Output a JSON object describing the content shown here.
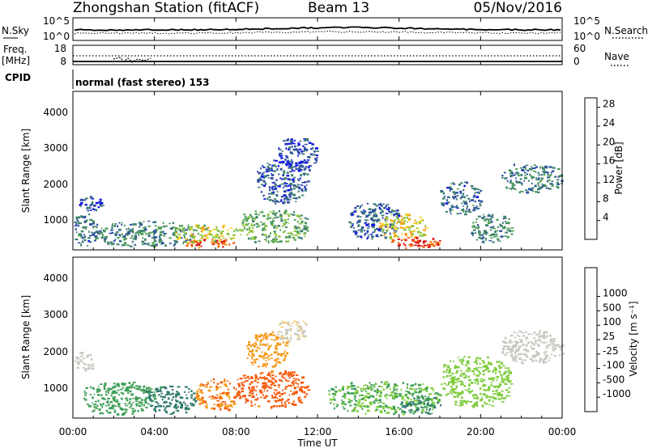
{
  "header": {
    "station": "Zhongshan Station (fitACF)",
    "beam": "Beam 13",
    "date": "05/Nov/2016"
  },
  "sky_panel": {
    "left_label": "N.Sky",
    "left_ticks": [
      "10^5",
      "10^0"
    ],
    "right_ticks": [
      "10^5",
      "10^0"
    ],
    "right_label": "N.Search"
  },
  "freq_panel": {
    "left_label_1": "Freq.",
    "left_label_2": "[MHz]",
    "left_ticks": [
      "18",
      "8"
    ],
    "right_ticks": [
      "60",
      "0"
    ],
    "right_label": "Nave"
  },
  "cpid": {
    "label": "CPID",
    "value": "normal (fast stereo) 153"
  },
  "x_axis": {
    "label": "Time UT",
    "ticks": [
      "00:00",
      "04:00",
      "08:00",
      "12:00",
      "16:00",
      "20:00",
      "00:00"
    ]
  },
  "colors": {
    "velocity_scale": [
      "#e8130f",
      "#f55a0c",
      "#f59a1c",
      "#f7cf7a",
      "#c8c8c0",
      "#7fcc3c",
      "#3f9f57",
      "#2f7a6c",
      "#2b56a8",
      "#2433c8"
    ],
    "power_scale": [
      "#1414e8",
      "#2d4fa0",
      "#3f8070",
      "#4f9f58",
      "#8cc63c",
      "#f0d020",
      "#f8a018",
      "#f06410",
      "#e01010"
    ]
  },
  "chart_data": [
    {
      "type": "heatmap",
      "title": "",
      "quantity": "Power",
      "xlabel": "Time UT",
      "ylabel": "Slant Range [km]",
      "y_ticks": [
        "1000",
        "2000",
        "3000",
        "4000"
      ],
      "xlim_hours": [
        0,
        24
      ],
      "ylim_km": [
        180,
        4600
      ],
      "colorbar": {
        "label": "Power [dB]",
        "ticks": [
          "4",
          "8",
          "12",
          "16",
          "20",
          "24",
          "28"
        ],
        "range": [
          0,
          30
        ]
      },
      "regions": [
        {
          "time_h": [
            0.0,
            1.2
          ],
          "range_km": [
            300,
            1200
          ],
          "value_db": 7
        },
        {
          "time_h": [
            0.3,
            1.5
          ],
          "range_km": [
            1300,
            1700
          ],
          "value_db": 4
        },
        {
          "time_h": [
            1.0,
            6.0
          ],
          "range_km": [
            300,
            1000
          ],
          "value_db": 9
        },
        {
          "time_h": [
            5.0,
            8.0
          ],
          "range_km": [
            400,
            900
          ],
          "value_db": 17
        },
        {
          "time_h": [
            5.5,
            8.0
          ],
          "range_km": [
            250,
            500
          ],
          "value_db": 26
        },
        {
          "time_h": [
            8.0,
            11.5
          ],
          "range_km": [
            400,
            1300
          ],
          "value_db": 12
        },
        {
          "time_h": [
            9.0,
            11.5
          ],
          "range_km": [
            1500,
            2700
          ],
          "value_db": 6
        },
        {
          "time_h": [
            10.0,
            12.0
          ],
          "range_km": [
            2400,
            3300
          ],
          "value_db": 4
        },
        {
          "time_h": [
            13.5,
            16.0
          ],
          "range_km": [
            500,
            1500
          ],
          "value_db": 6
        },
        {
          "time_h": [
            15.0,
            17.5
          ],
          "range_km": [
            500,
            1200
          ],
          "value_db": 18
        },
        {
          "time_h": [
            15.5,
            18.0
          ],
          "range_km": [
            250,
            550
          ],
          "value_db": 27
        },
        {
          "time_h": [
            18.0,
            20.0
          ],
          "range_km": [
            1200,
            2100
          ],
          "value_db": 7
        },
        {
          "time_h": [
            19.5,
            21.5
          ],
          "range_km": [
            400,
            1200
          ],
          "value_db": 9
        },
        {
          "time_h": [
            21.0,
            24.0
          ],
          "range_km": [
            1800,
            2600
          ],
          "value_db": 8
        }
      ]
    },
    {
      "type": "heatmap",
      "title": "",
      "quantity": "Velocity",
      "xlabel": "Time UT",
      "ylabel": "Slant Range [km]",
      "y_ticks": [
        "1000",
        "2000",
        "3000",
        "4000"
      ],
      "xlim_hours": [
        0,
        24
      ],
      "ylim_km": [
        180,
        4600
      ],
      "colorbar": {
        "label": "Velocity [m s⁻¹]",
        "ticks": [
          "-1000",
          "-500",
          "-100",
          "-25",
          "25",
          "100",
          "500",
          "1000"
        ],
        "levels": [
          -1000,
          -500,
          -100,
          -25,
          25,
          100,
          500,
          1000
        ]
      },
      "regions": [
        {
          "time_h": [
            0.0,
            1.0
          ],
          "range_km": [
            1500,
            2000
          ],
          "value_ms": 0
        },
        {
          "time_h": [
            0.5,
            4.0
          ],
          "range_km": [
            300,
            1200
          ],
          "value_ms": 150
        },
        {
          "time_h": [
            3.5,
            6.0
          ],
          "range_km": [
            300,
            1100
          ],
          "value_ms": 700
        },
        {
          "time_h": [
            6.0,
            8.0
          ],
          "range_km": [
            400,
            1300
          ],
          "value_ms": -500
        },
        {
          "time_h": [
            8.0,
            11.5
          ],
          "range_km": [
            500,
            1500
          ],
          "value_ms": -700
        },
        {
          "time_h": [
            8.5,
            10.5
          ],
          "range_km": [
            1600,
            2600
          ],
          "value_ms": -150
        },
        {
          "time_h": [
            10.0,
            11.5
          ],
          "range_km": [
            2300,
            2900
          ],
          "value_ms": -25
        },
        {
          "time_h": [
            12.5,
            18.0
          ],
          "range_km": [
            300,
            1200
          ],
          "value_ms": 100
        },
        {
          "time_h": [
            16.0,
            18.0
          ],
          "range_km": [
            300,
            800
          ],
          "value_ms": 600
        },
        {
          "time_h": [
            18.0,
            21.5
          ],
          "range_km": [
            500,
            1900
          ],
          "value_ms": 60
        },
        {
          "time_h": [
            21.0,
            24.0
          ],
          "range_km": [
            1700,
            2600
          ],
          "value_ms": 0
        }
      ]
    }
  ]
}
